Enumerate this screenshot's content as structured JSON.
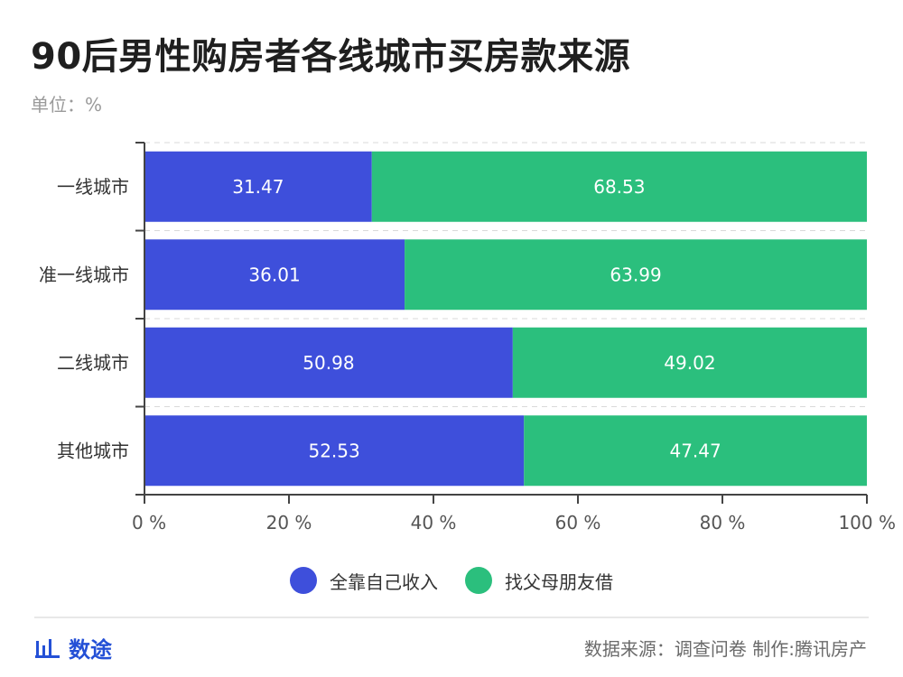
{
  "title": "90后男性购房者各线城市买房款来源",
  "subtitle": "单位：%",
  "colors": {
    "self": "#3e4fdb",
    "parents": "#2bbf7d",
    "axis": "#444444",
    "grid": "#d9d9d9",
    "brand": "#2450d6"
  },
  "legend": [
    {
      "label": "全靠自己收入",
      "color": "#3e4fdb"
    },
    {
      "label": "找父母朋友借",
      "color": "#2bbf7d"
    }
  ],
  "chart_data": {
    "type": "bar",
    "orientation": "horizontal",
    "stacked": true,
    "categories": [
      "一线城市",
      "准一线城市",
      "二线城市",
      "其他城市"
    ],
    "series": [
      {
        "name": "全靠自己收入",
        "values": [
          31.47,
          36.01,
          50.98,
          52.53
        ]
      },
      {
        "name": "找父母朋友借",
        "values": [
          68.53,
          63.99,
          49.02,
          47.47
        ]
      }
    ],
    "xlim": [
      0,
      100
    ],
    "xticks": [
      "0 %",
      "20 %",
      "40 %",
      "60 %",
      "80 %",
      "100 %"
    ],
    "grid": true,
    "legend_position": "bottom-center"
  },
  "footer": {
    "brand_name": "数途",
    "brand_icon": "bar-chart-icon",
    "source_text": "数据来源：调查问卷 制作:腾讯房产"
  }
}
